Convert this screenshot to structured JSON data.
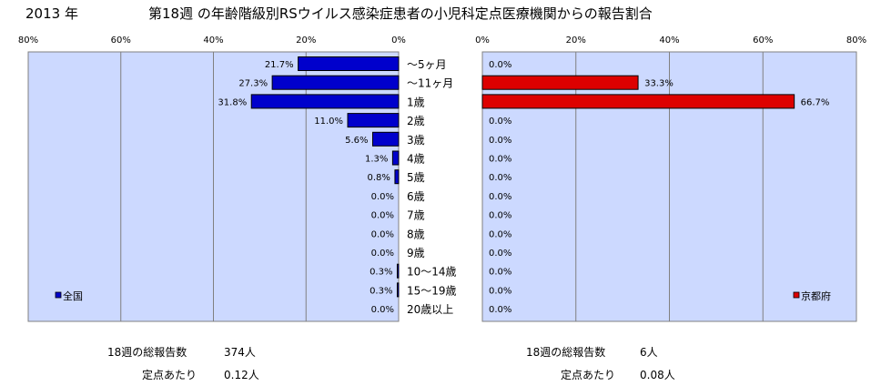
{
  "header": {
    "year": "2013 年",
    "title": "第18週 の年齢階級別RSウイルス感染症患者の小児科定点医療機関からの報告割合"
  },
  "chart_data": [
    {
      "type": "bar",
      "orientation": "horizontal",
      "direction": "right-to-left",
      "categories": [
        "～5ヶ月",
        "～11ヶ月",
        "1歳",
        "2歳",
        "3歳",
        "4歳",
        "5歳",
        "6歳",
        "7歳",
        "8歳",
        "9歳",
        "10～14歳",
        "15～19歳",
        "20歳以上"
      ],
      "series": [
        {
          "name": "全国",
          "color": "#0000cc",
          "values": [
            21.7,
            27.3,
            31.8,
            11.0,
            5.6,
            1.3,
            0.8,
            0.0,
            0.0,
            0.0,
            0.0,
            0.3,
            0.3,
            0.0
          ],
          "value_labels": [
            "21.7%",
            "27.3%",
            "31.8%",
            "11.0%",
            "5.6%",
            "1.3%",
            "0.8%",
            "0.0%",
            "0.0%",
            "0.0%",
            "0.0%",
            "0.3%",
            "0.3%",
            "0.0%"
          ]
        }
      ],
      "xlim": [
        0,
        80
      ],
      "tick_labels": [
        "80%",
        "60%",
        "40%",
        "20%",
        "0%"
      ],
      "legend_placement": "bottom-left",
      "grid": true
    },
    {
      "type": "bar",
      "orientation": "horizontal",
      "direction": "left-to-right",
      "categories": [
        "～5ヶ月",
        "～11ヶ月",
        "1歳",
        "2歳",
        "3歳",
        "4歳",
        "5歳",
        "6歳",
        "7歳",
        "8歳",
        "9歳",
        "10～14歳",
        "15～19歳",
        "20歳以上"
      ],
      "series": [
        {
          "name": "京都府",
          "color": "#dd0000",
          "values": [
            0.0,
            33.3,
            66.7,
            0.0,
            0.0,
            0.0,
            0.0,
            0.0,
            0.0,
            0.0,
            0.0,
            0.0,
            0.0,
            0.0
          ],
          "value_labels": [
            "0.0%",
            "33.3%",
            "66.7%",
            "0.0%",
            "0.0%",
            "0.0%",
            "0.0%",
            "0.0%",
            "0.0%",
            "0.0%",
            "0.0%",
            "0.0%",
            "0.0%",
            "0.0%"
          ]
        }
      ],
      "xlim": [
        0,
        80
      ],
      "tick_labels": [
        "0%",
        "20%",
        "40%",
        "60%",
        "80%"
      ],
      "legend_placement": "bottom-right",
      "grid": true
    }
  ],
  "footer": {
    "national": {
      "total_label": "18週の総報告数",
      "total_value": "374人",
      "per_label": "定点あたり",
      "per_value": "0.12人"
    },
    "kyoto": {
      "total_label": "18週の総報告数",
      "total_value": "6人",
      "per_label": "定点あたり",
      "per_value": "0.08人"
    }
  }
}
